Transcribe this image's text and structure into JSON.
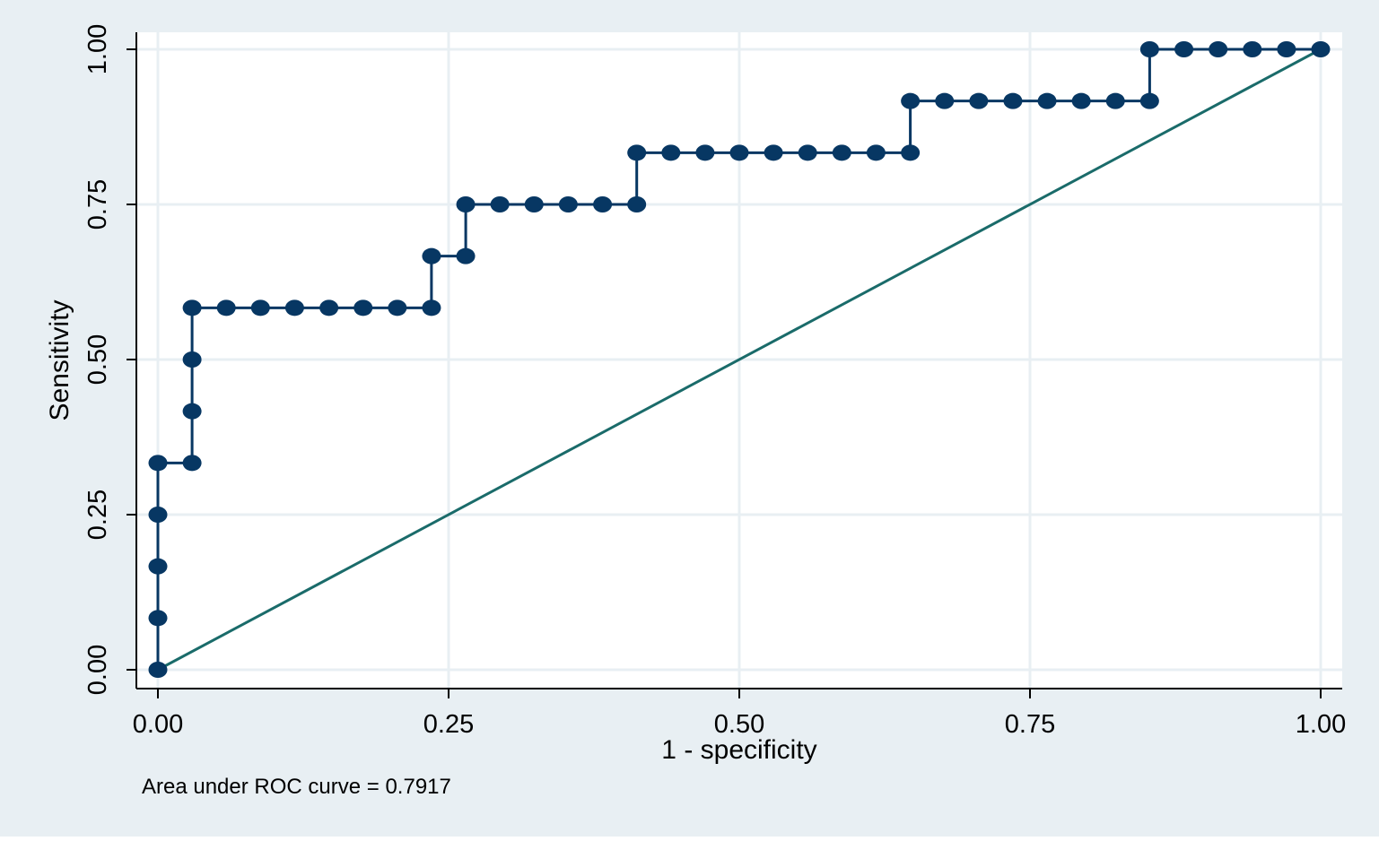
{
  "chart_data": {
    "type": "line",
    "xlabel": "1 - specificity",
    "ylabel": "Sensitivity",
    "note": "Area under ROC curve = 0.7917",
    "xlim": [
      0,
      1
    ],
    "ylim": [
      0,
      1
    ],
    "x_ticks": [
      "0.00",
      "0.25",
      "0.50",
      "0.75",
      "1.00"
    ],
    "y_ticks": [
      "0.00",
      "0.25",
      "0.50",
      "0.75",
      "1.00"
    ],
    "grid": true,
    "colors": {
      "background": "#e8eff3",
      "plot_area": "#ffffff",
      "grid": "#e8eff3",
      "roc": "#073763",
      "reference": "#1a6b6a"
    },
    "series": [
      {
        "kind": "roc-steps-with-markers",
        "x": [
          0,
          0,
          0,
          0,
          0,
          0.0294,
          0.0294,
          0.0294,
          0.0294,
          0.0588,
          0.0882,
          0.1176,
          0.1471,
          0.1765,
          0.2059,
          0.2353,
          0.2353,
          0.2647,
          0.2647,
          0.2941,
          0.3235,
          0.3529,
          0.3824,
          0.4118,
          0.4118,
          0.4412,
          0.4706,
          0.5,
          0.5294,
          0.5588,
          0.5882,
          0.6176,
          0.6471,
          0.6471,
          0.6765,
          0.7059,
          0.7353,
          0.7647,
          0.7941,
          0.8235,
          0.8529,
          0.8529,
          0.8824,
          0.9118,
          0.9412,
          0.9706,
          1
        ],
        "y": [
          0,
          0.0833,
          0.1667,
          0.25,
          0.3333,
          0.3333,
          0.4167,
          0.5,
          0.5833,
          0.5833,
          0.5833,
          0.5833,
          0.5833,
          0.5833,
          0.5833,
          0.5833,
          0.6667,
          0.6667,
          0.75,
          0.75,
          0.75,
          0.75,
          0.75,
          0.75,
          0.8333,
          0.8333,
          0.8333,
          0.8333,
          0.8333,
          0.8333,
          0.8333,
          0.8333,
          0.8333,
          0.9167,
          0.9167,
          0.9167,
          0.9167,
          0.9167,
          0.9167,
          0.9167,
          0.9167,
          1,
          1,
          1,
          1,
          1,
          1
        ]
      },
      {
        "kind": "reference-line",
        "x": [
          0,
          1
        ],
        "y": [
          0,
          1
        ]
      }
    ]
  }
}
